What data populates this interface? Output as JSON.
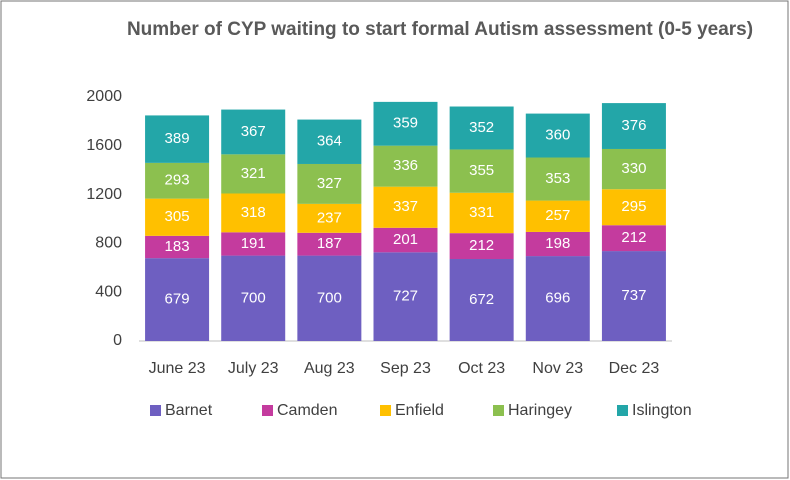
{
  "chart_data": {
    "type": "stacked_bar",
    "title": "Number of CYP waiting to start formal Autism assessment (0-5 years)",
    "categories": [
      "June 23",
      "July 23",
      "Aug 23",
      "Sep 23",
      "Oct 23",
      "Nov 23",
      "Dec 23"
    ],
    "series": [
      {
        "name": "Barnet",
        "color": "#6e5fc1",
        "values": [
          679,
          700,
          700,
          727,
          672,
          696,
          737
        ]
      },
      {
        "name": "Camden",
        "color": "#c43b9e",
        "values": [
          183,
          191,
          187,
          201,
          212,
          198,
          212
        ]
      },
      {
        "name": "Enfield",
        "color": "#ffc000",
        "values": [
          305,
          318,
          237,
          337,
          331,
          257,
          295
        ]
      },
      {
        "name": "Haringey",
        "color": "#8cc04f",
        "values": [
          293,
          321,
          327,
          336,
          355,
          353,
          330
        ]
      },
      {
        "name": "Islington",
        "color": "#23a6a8",
        "values": [
          389,
          367,
          364,
          359,
          352,
          360,
          376
        ]
      }
    ],
    "ylim": [
      0,
      2000
    ],
    "yticks": [
      0,
      400,
      800,
      1200,
      1600,
      2000
    ],
    "grid": false,
    "legend": "bottom"
  }
}
